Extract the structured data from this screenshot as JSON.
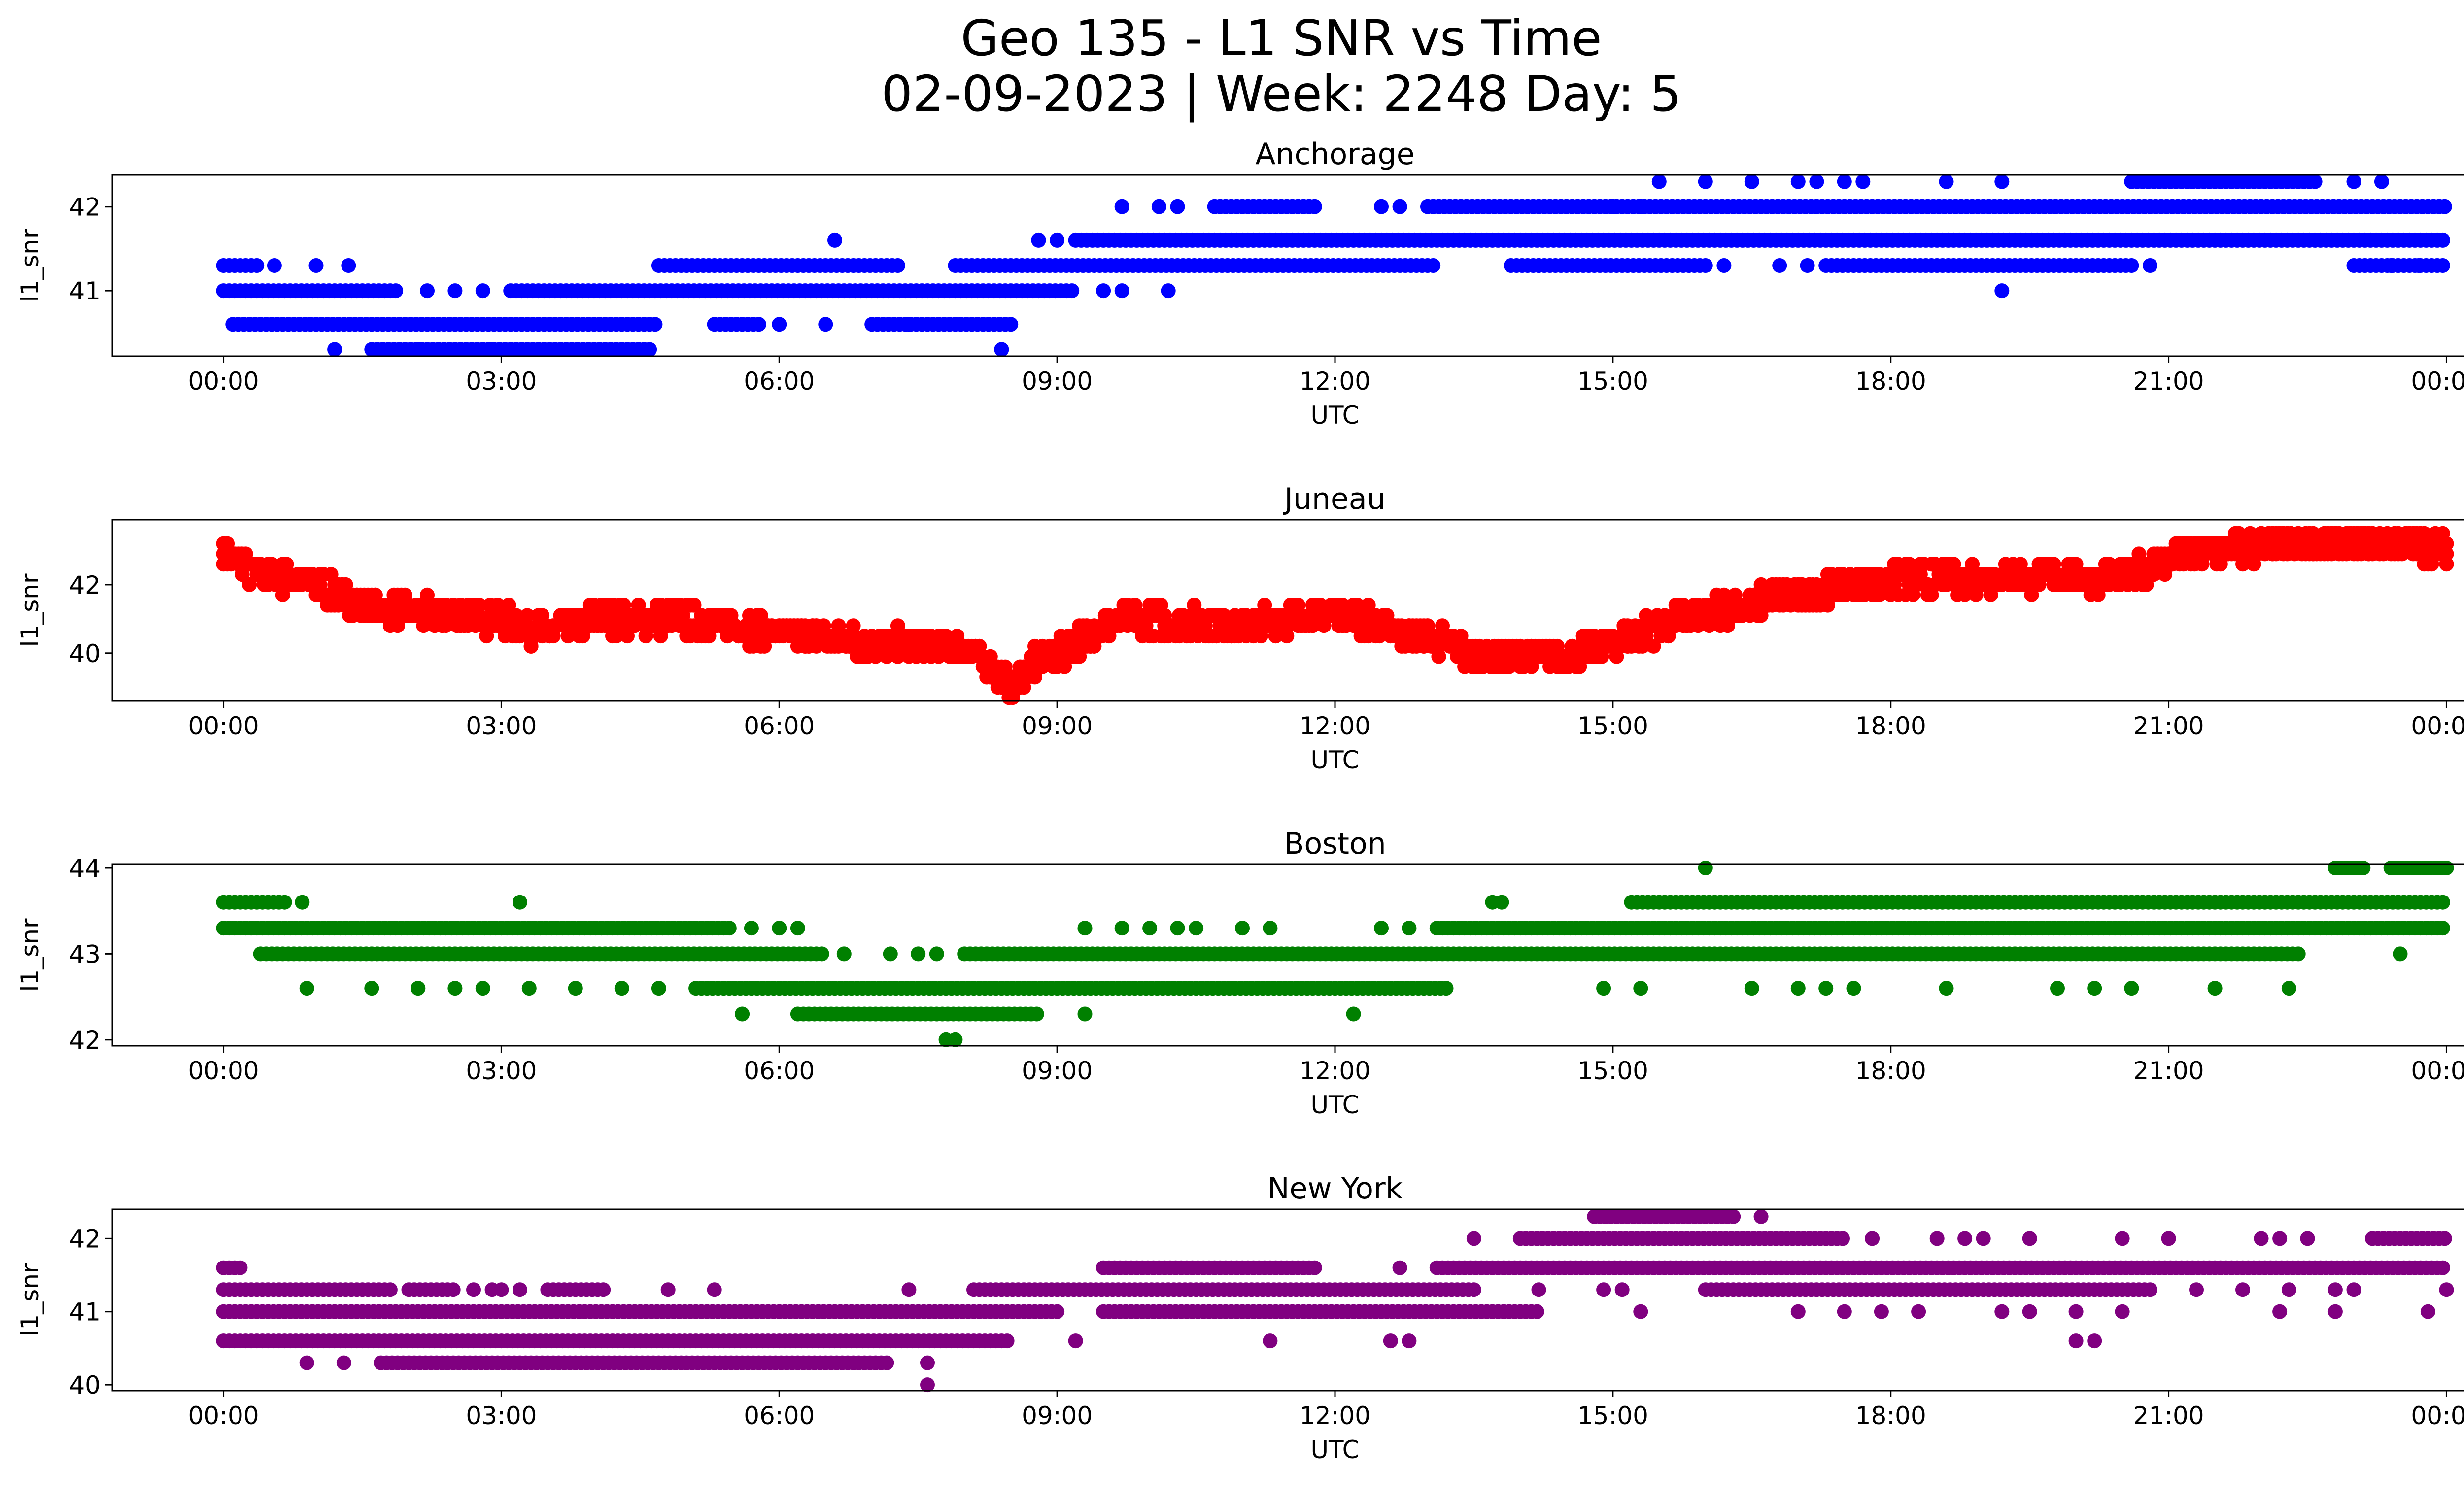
{
  "title_line1": "Geo 135 - L1 SNR vs Time",
  "title_line2": "02-09-2023 | Week: 2248 Day: 5",
  "chart_data": [
    {
      "type": "scatter",
      "title": "Anchorage",
      "xlabel": "UTC",
      "ylabel": "l1_snr",
      "x_tick_labels": [
        "00:00",
        "03:00",
        "06:00",
        "09:00",
        "12:00",
        "15:00",
        "18:00",
        "21:00",
        "00:00"
      ],
      "xlim_hours": [
        -1.2,
        25.2
      ],
      "y_ticks": [
        41,
        42
      ],
      "ylim": [
        40.22,
        42.38
      ],
      "color": "#0000ff",
      "series": [
        {
          "y": 41.3,
          "intervals": [
            [
              0.0,
              0.4
            ],
            [
              4.7,
              7.3
            ],
            [
              7.9,
              13.1
            ],
            [
              13.9,
              16.0
            ],
            [
              17.3,
              20.6
            ],
            [
              23.0,
              24.0
            ]
          ],
          "points": [
            0.55,
            1.0,
            1.35,
            14.2,
            16.2,
            16.8,
            17.1,
            20.8,
            23.4,
            23.7
          ]
        },
        {
          "y": 41.0,
          "intervals": [
            [
              0.0,
              1.9
            ],
            [
              3.1,
              9.2
            ]
          ],
          "points": [
            2.2,
            2.5,
            2.8,
            9.5,
            9.7,
            10.2,
            19.2
          ]
        },
        {
          "y": 40.6,
          "intervals": [
            [
              0.1,
              4.7
            ],
            [
              5.3,
              5.8
            ],
            [
              7.0,
              8.5
            ]
          ],
          "points": [
            6.0,
            6.5,
            7.4
          ]
        },
        {
          "y": 40.3,
          "intervals": [
            [
              1.6,
              4.6
            ]
          ],
          "points": [
            1.2,
            2.1,
            2.9,
            8.4
          ]
        },
        {
          "y": 41.6,
          "intervals": [
            [
              9.2,
              24.0
            ]
          ],
          "points": [
            6.6,
            8.8,
            9.0
          ]
        },
        {
          "y": 42.0,
          "intervals": [
            [
              10.7,
              11.8
            ],
            [
              13.0,
              24.0
            ]
          ],
          "points": [
            9.7,
            10.1,
            10.3,
            12.5,
            12.7,
            15.0,
            15.3
          ]
        },
        {
          "y": 42.3,
          "intervals": [
            [
              20.6,
              22.6
            ]
          ],
          "points": [
            15.5,
            16.0,
            16.5,
            17.0,
            17.2,
            17.5,
            17.7,
            18.6,
            19.2,
            23.0,
            23.3
          ]
        }
      ]
    },
    {
      "type": "scatter",
      "title": "Juneau",
      "xlabel": "UTC",
      "ylabel": "l1_snr",
      "x_tick_labels": [
        "00:00",
        "03:00",
        "06:00",
        "09:00",
        "12:00",
        "15:00",
        "18:00",
        "21:00",
        "00:00"
      ],
      "xlim_hours": [
        -1.2,
        25.2
      ],
      "y_ticks": [
        40,
        42
      ],
      "ylim": [
        38.6,
        43.9
      ],
      "color": "#ff0000",
      "trend": [
        [
          0,
          43.0
        ],
        [
          0.3,
          42.4
        ],
        [
          1.0,
          42.0
        ],
        [
          1.4,
          41.5
        ],
        [
          2.0,
          41.2
        ],
        [
          3.0,
          41.0
        ],
        [
          3.5,
          40.6
        ],
        [
          4.0,
          41.0
        ],
        [
          5.0,
          41.0
        ],
        [
          6.0,
          40.6
        ],
        [
          7.0,
          40.3
        ],
        [
          8.0,
          40.2
        ],
        [
          8.3,
          39.6
        ],
        [
          8.5,
          39.0
        ],
        [
          8.7,
          39.6
        ],
        [
          9.0,
          40.0
        ],
        [
          9.5,
          40.8
        ],
        [
          10.0,
          41.0
        ],
        [
          11.0,
          40.8
        ],
        [
          12.0,
          41.2
        ],
        [
          12.5,
          40.8
        ],
        [
          13.2,
          40.3
        ],
        [
          13.5,
          39.9
        ],
        [
          14.5,
          39.9
        ],
        [
          15.0,
          40.3
        ],
        [
          15.5,
          40.8
        ],
        [
          16.5,
          41.5
        ],
        [
          17.5,
          42.0
        ],
        [
          18.5,
          42.2
        ],
        [
          19.5,
          42.2
        ],
        [
          20.5,
          42.2
        ],
        [
          21.0,
          42.8
        ],
        [
          21.5,
          43.0
        ],
        [
          22.5,
          43.2
        ],
        [
          23.5,
          43.2
        ],
        [
          24.0,
          43.0
        ]
      ],
      "spread": 0.4
    },
    {
      "type": "scatter",
      "title": "Boston",
      "xlabel": "UTC",
      "ylabel": "l1_snr",
      "x_tick_labels": [
        "00:00",
        "03:00",
        "06:00",
        "09:00",
        "12:00",
        "15:00",
        "18:00",
        "21:00",
        "00:00"
      ],
      "xlim_hours": [
        -1.2,
        25.2
      ],
      "y_ticks": [
        42,
        43,
        44
      ],
      "ylim": [
        41.93,
        44.04
      ],
      "color": "#008000",
      "series": [
        {
          "y": 43.6,
          "intervals": [
            [
              0.0,
              0.7
            ],
            [
              15.2,
              24.0
            ]
          ],
          "points": [
            0.85,
            3.2,
            13.7,
            13.8
          ]
        },
        {
          "y": 43.3,
          "intervals": [
            [
              0.0,
              5.5
            ],
            [
              13.1,
              24.0
            ]
          ],
          "points": [
            5.7,
            6.0,
            6.2,
            9.3,
            9.7,
            10.0,
            10.3,
            10.5,
            11.0,
            11.3,
            12.5,
            12.8
          ]
        },
        {
          "y": 43.0,
          "intervals": [
            [
              0.4,
              6.5
            ],
            [
              8.0,
              22.4
            ]
          ],
          "points": [
            6.7,
            7.2,
            7.5,
            7.7,
            23.5
          ]
        },
        {
          "y": 42.6,
          "intervals": [
            [
              5.1,
              13.2
            ]
          ],
          "points": [
            0.9,
            1.6,
            2.1,
            2.5,
            2.8,
            3.3,
            3.8,
            4.3,
            4.7,
            14.9,
            15.3,
            16.5,
            17.0,
            17.3,
            17.6,
            18.6,
            19.8,
            20.2,
            20.6,
            21.5,
            22.3
          ]
        },
        {
          "y": 42.3,
          "intervals": [
            [
              6.2,
              8.8
            ]
          ],
          "points": [
            5.6,
            9.3,
            12.2
          ]
        },
        {
          "y": 42.0,
          "intervals": [],
          "points": [
            7.8,
            7.9
          ]
        },
        {
          "y": 44.0,
          "intervals": [
            [
              22.8,
              23.1
            ],
            [
              23.4,
              24.0
            ]
          ],
          "points": [
            16.0
          ]
        }
      ]
    },
    {
      "type": "scatter",
      "title": "New York",
      "xlabel": "UTC",
      "ylabel": "l1_snr",
      "x_tick_labels": [
        "00:00",
        "03:00",
        "06:00",
        "09:00",
        "12:00",
        "15:00",
        "18:00",
        "21:00",
        "00:00"
      ],
      "xlim_hours": [
        -1.2,
        25.2
      ],
      "y_ticks": [
        40,
        41,
        42
      ],
      "ylim": [
        39.92,
        42.4
      ],
      "color": "#800080",
      "series": [
        {
          "y": 41.6,
          "intervals": [
            [
              0.0,
              0.2
            ],
            [
              9.5,
              11.8
            ],
            [
              13.1,
              24.0
            ]
          ],
          "points": [
            12.7
          ]
        },
        {
          "y": 41.3,
          "intervals": [
            [
              0.0,
              1.8
            ],
            [
              2.0,
              2.5
            ],
            [
              3.5,
              4.1
            ],
            [
              8.1,
              13.5
            ],
            [
              16.0,
              20.8
            ]
          ],
          "points": [
            2.7,
            2.9,
            3.0,
            3.2,
            4.8,
            5.3,
            7.4,
            14.2,
            14.9,
            15.1,
            21.3,
            21.8,
            22.3,
            22.8,
            23.0,
            24.0
          ]
        },
        {
          "y": 41.0,
          "intervals": [
            [
              0.0,
              9.0
            ],
            [
              9.5,
              14.2
            ]
          ],
          "points": [
            13.7,
            15.3,
            17.0,
            17.5,
            17.9,
            18.3,
            19.2,
            19.5,
            20.0,
            20.5,
            22.2,
            22.8,
            23.8
          ]
        },
        {
          "y": 40.6,
          "intervals": [
            [
              0.0,
              8.5
            ]
          ],
          "points": [
            9.2,
            11.3,
            12.6,
            12.8,
            20.0,
            20.2
          ]
        },
        {
          "y": 40.3,
          "intervals": [
            [
              1.7,
              7.2
            ]
          ],
          "points": [
            0.9,
            1.3,
            7.6
          ]
        },
        {
          "y": 40.0,
          "intervals": [],
          "points": [
            7.6
          ]
        },
        {
          "y": 42.0,
          "intervals": [
            [
              14.0,
              17.5
            ],
            [
              23.2,
              24.0
            ]
          ],
          "points": [
            13.5,
            17.8,
            18.5,
            18.8,
            19.0,
            19.5,
            20.5,
            21.0,
            22.0,
            22.2,
            22.5
          ]
        },
        {
          "y": 42.3,
          "intervals": [
            [
              14.8,
              16.3
            ]
          ],
          "points": [
            16.6
          ]
        }
      ]
    }
  ]
}
